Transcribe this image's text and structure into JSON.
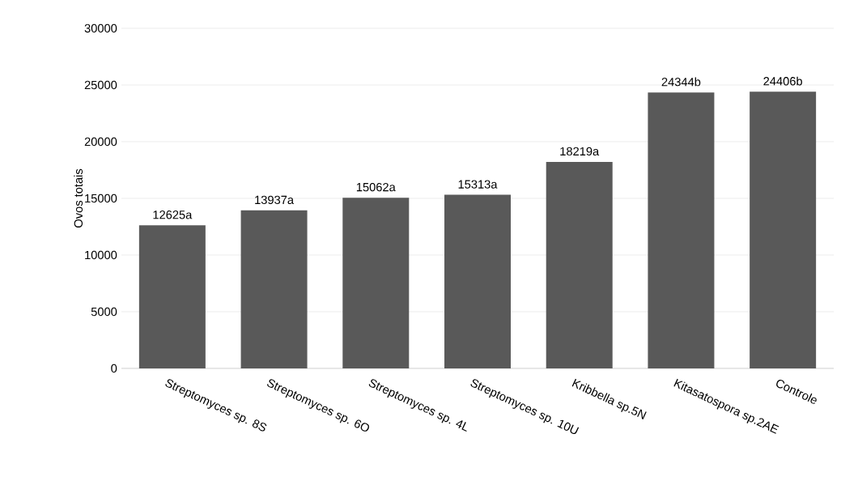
{
  "chart_data": {
    "type": "bar",
    "ylabel": "Ovos totais",
    "categories": [
      "Streptomyces sp. 8S",
      "Streptomyces sp. 6O",
      "Streptomyces sp. 4L",
      "Streptomyces sp. 10U",
      "Kribbella sp.5N",
      "Kitasatospora sp.2AE",
      "Controle"
    ],
    "values": [
      12625,
      13937,
      15062,
      15313,
      18219,
      24344,
      24406
    ],
    "value_labels": [
      "12625a",
      "13937a",
      "15062a",
      "15313a",
      "18219a",
      "24344b",
      "24406b"
    ],
    "color": "#595959",
    "ylim": [
      0,
      30000
    ],
    "yticks": [
      0,
      5000,
      10000,
      15000,
      20000,
      25000,
      30000
    ],
    "grid": "y"
  }
}
